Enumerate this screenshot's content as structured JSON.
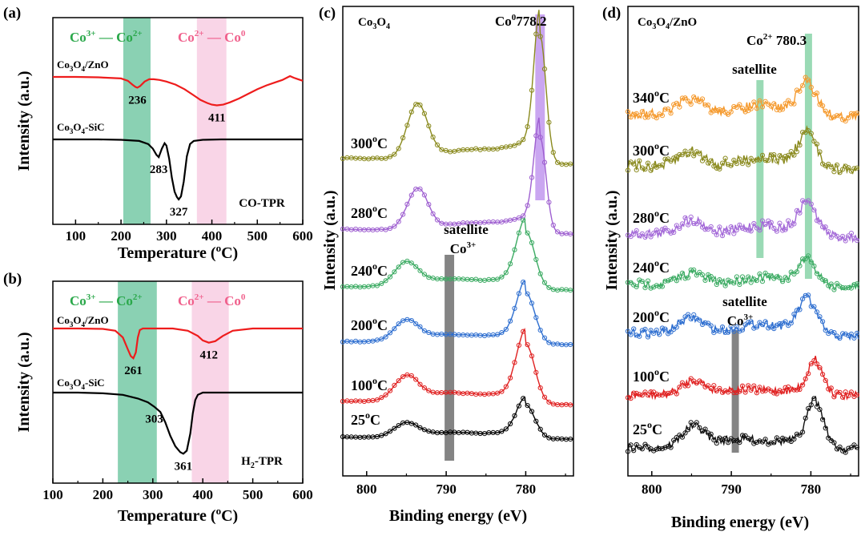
{
  "chart_data": [
    {
      "panel": "(a)",
      "type": "line",
      "xlabel": "Temperature (oC)",
      "ylabel": "Intensity (a.u.)",
      "xlim": [
        50,
        600
      ],
      "xticks": [
        100,
        200,
        300,
        400,
        500,
        600
      ],
      "method": "CO-TPR",
      "regions": [
        {
          "label_parts": [
            "Co3+",
            "— Co2+"
          ],
          "color": "#63c29a",
          "x": [
            205,
            265
          ]
        },
        {
          "label_parts": [
            "Co2+",
            "— Co0"
          ],
          "color": "#f4b3d4",
          "x": [
            367,
            432
          ]
        }
      ],
      "series": [
        {
          "name": "Co3O4/ZnO",
          "color": "#ee1c1c",
          "x": [
            50,
            100,
            150,
            200,
            215,
            225,
            232,
            236,
            242,
            252,
            262,
            272,
            285,
            300,
            320,
            340,
            360,
            375,
            390,
            400,
            411,
            425,
            440,
            460,
            480,
            500,
            520,
            540,
            555,
            565,
            572,
            580,
            590,
            600
          ],
          "y": [
            0.0,
            0.0,
            -0.005,
            -0.02,
            -0.05,
            -0.1,
            -0.13,
            -0.14,
            -0.12,
            -0.06,
            -0.03,
            -0.03,
            -0.04,
            -0.06,
            -0.1,
            -0.16,
            -0.24,
            -0.3,
            -0.34,
            -0.36,
            -0.37,
            -0.36,
            -0.33,
            -0.28,
            -0.22,
            -0.16,
            -0.11,
            -0.07,
            -0.04,
            -0.01,
            0.01,
            -0.01,
            -0.03,
            -0.05
          ],
          "peaks": [
            {
              "x": 236,
              "label": "236"
            },
            {
              "x": 411,
              "label": "411"
            }
          ]
        },
        {
          "name": "Co3O4-SiC",
          "color": "#000000",
          "x": [
            50,
            100,
            150,
            200,
            240,
            260,
            270,
            278,
            283,
            290,
            296,
            300,
            306,
            312,
            318,
            323,
            327,
            332,
            338,
            345,
            352,
            360,
            380,
            420,
            460,
            500,
            550,
            600
          ],
          "y": [
            0.0,
            0.0,
            0.0,
            -0.005,
            -0.02,
            -0.06,
            -0.12,
            -0.2,
            -0.23,
            -0.12,
            -0.05,
            -0.08,
            -0.25,
            -0.5,
            -0.68,
            -0.75,
            -0.78,
            -0.74,
            -0.55,
            -0.22,
            -0.06,
            -0.02,
            -0.005,
            0.0,
            0.0,
            0.0,
            0.0,
            0.0
          ],
          "peaks": [
            {
              "x": 283,
              "label": "283"
            },
            {
              "x": 327,
              "label": "327"
            }
          ]
        }
      ]
    },
    {
      "panel": "(b)",
      "type": "line",
      "xlabel": "Temperature (oC)",
      "ylabel": "Intensity (a.u.)",
      "xlim": [
        100,
        600
      ],
      "xticks": [
        100,
        200,
        300,
        400,
        500,
        600
      ],
      "method": "H2-TPR",
      "regions": [
        {
          "label_parts": [
            "Co3+",
            "— Co2+"
          ],
          "color": "#63c29a",
          "x": [
            230,
            308
          ]
        },
        {
          "label_parts": [
            "Co2+",
            "— Co0"
          ],
          "color": "#f4b3d4",
          "x": [
            378,
            452
          ]
        }
      ],
      "series": [
        {
          "name": "Co3O4/ZnO",
          "color": "#ee1c1c",
          "x": [
            100,
            150,
            200,
            225,
            240,
            250,
            256,
            261,
            266,
            270,
            274,
            280,
            290,
            310,
            340,
            370,
            390,
            400,
            412,
            425,
            440,
            460,
            500,
            550,
            600
          ],
          "y": [
            0.0,
            0.0,
            -0.005,
            -0.03,
            -0.12,
            -0.28,
            -0.37,
            -0.4,
            -0.32,
            -0.12,
            -0.02,
            0.0,
            0.0,
            0.0,
            0.0,
            -0.03,
            -0.1,
            -0.16,
            -0.19,
            -0.17,
            -0.1,
            -0.03,
            0.0,
            0.0,
            0.0
          ],
          "peaks": [
            {
              "x": 261,
              "label": "261"
            },
            {
              "x": 412,
              "label": "412"
            }
          ]
        },
        {
          "name": "Co3O4-SiC",
          "color": "#000000",
          "x": [
            100,
            150,
            200,
            240,
            270,
            290,
            303,
            315,
            325,
            335,
            345,
            355,
            361,
            368,
            375,
            380,
            385,
            390,
            400,
            420,
            460,
            500,
            550,
            600
          ],
          "y": [
            0.0,
            0.0,
            -0.01,
            -0.03,
            -0.08,
            -0.13,
            -0.19,
            -0.26,
            -0.4,
            -0.58,
            -0.72,
            -0.8,
            -0.82,
            -0.78,
            -0.55,
            -0.28,
            -0.1,
            -0.03,
            0.0,
            0.0,
            0.0,
            0.0,
            0.0,
            0.0
          ],
          "peaks": [
            {
              "x": 303,
              "label": "303"
            },
            {
              "x": 361,
              "label": "361"
            }
          ]
        }
      ]
    },
    {
      "panel": "(c)",
      "type": "line",
      "title": "Co3O4",
      "xlabel": "Binding energy (eV)",
      "ylabel": "Intensity (a.u.)",
      "xlim": [
        803,
        774
      ],
      "xticks": [
        800,
        790,
        780
      ],
      "bands": [
        {
          "x": 778.2,
          "width": 1.2,
          "color": "#c49cf0",
          "label_parts": [
            "Co0",
            "778.2"
          ]
        },
        {
          "x": 789.6,
          "width": 1.2,
          "color": "#777777",
          "label_parts": [
            "satellite",
            "Co3+"
          ]
        }
      ],
      "series": [
        {
          "name": "25oC",
          "color": "#000000",
          "shape": "co3o4_low"
        },
        {
          "name": "100oC",
          "color": "#e02020",
          "shape": "co3o4_low"
        },
        {
          "name": "200oC",
          "color": "#2f6fd0",
          "shape": "co3o4_low"
        },
        {
          "name": "240oC",
          "color": "#3cab63",
          "shape": "co3o4_low"
        },
        {
          "name": "280oC",
          "color": "#9e5fd0",
          "shape": "co_metal"
        },
        {
          "name": "300oC",
          "color": "#8a8a1e",
          "shape": "co_metal"
        }
      ]
    },
    {
      "panel": "(d)",
      "type": "line",
      "title": "Co3O4/ZnO",
      "xlabel": "Binding energy (eV)",
      "ylabel": "Intensity (a.u.)",
      "xlim": [
        803,
        774
      ],
      "xticks": [
        800,
        790,
        780
      ],
      "bands": [
        {
          "x": 786.4,
          "width": 0.9,
          "color": "#8fd6ad",
          "label": "satellite"
        },
        {
          "x": 780.3,
          "width": 0.9,
          "color": "#8fd6ad",
          "label_parts": [
            "Co2+",
            "780.3"
          ]
        },
        {
          "x": 789.5,
          "width": 0.9,
          "color": "#777777",
          "label_parts": [
            "satellite",
            "Co3+"
          ]
        }
      ],
      "series": [
        {
          "name": "25oC",
          "color": "#111111"
        },
        {
          "name": "100oC",
          "color": "#e02020"
        },
        {
          "name": "200oC",
          "color": "#2f6fd0"
        },
        {
          "name": "240oC",
          "color": "#3cab63"
        },
        {
          "name": "280oC",
          "color": "#a46ad8"
        },
        {
          "name": "300oC",
          "color": "#8a8a1e"
        },
        {
          "name": "340oC",
          "color": "#f59a2e"
        }
      ]
    }
  ]
}
